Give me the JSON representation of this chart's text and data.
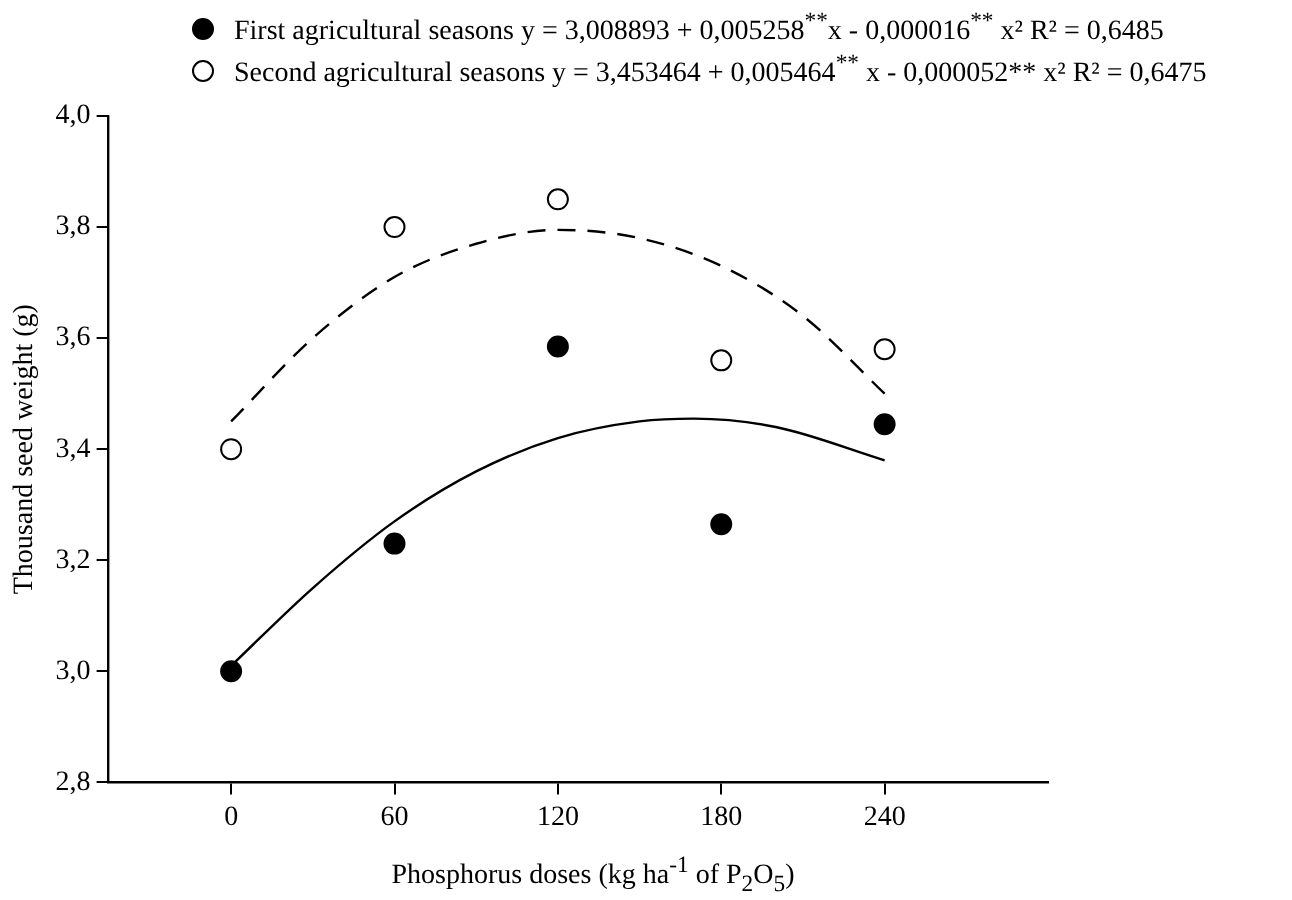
{
  "chart_data": {
    "type": "scatter",
    "xlabel": "Phosphorus doses (kg ha$^{-1}$ of  P$_{2}$O$_{5}$)",
    "ylabel": "Thousand seed weight (g)",
    "x": [
      0,
      60,
      120,
      180,
      240
    ],
    "series": [
      {
        "name": "First agricultural seasons y = 3,008893 + 0,005258$^{**}$x - 0,000016$^{**}$ x² R² = 0,6485",
        "type": "scatter",
        "marker": "circle",
        "color": "#000000",
        "values": [
          3.0,
          3.23,
          3.585,
          3.265,
          3.445
        ]
      },
      {
        "name": "Second agricultural seasons y = 3,453464 + 0,005464$^{**}$ x - 0,000052** x² R² = 0,6475",
        "type": "scatter",
        "marker": "circle",
        "color": "#ffffff",
        "values": [
          3.4,
          3.8,
          3.85,
          3.56,
          3.58
        ]
      },
      {
        "type": "line",
        "marker": "none",
        "line_style": "solid",
        "color": "#000000",
        "x": [
          0,
          30,
          60,
          90,
          120,
          150,
          170,
          200,
          240
        ],
        "values": [
          3.01,
          3.15,
          3.27,
          3.36,
          3.42,
          3.45,
          3.455,
          3.44,
          3.38
        ]
      },
      {
        "type": "line",
        "marker": "none",
        "line_style": "dashed",
        "color": "#000000",
        "x": [
          0,
          30,
          60,
          90,
          120,
          150,
          180,
          210,
          240
        ],
        "values": [
          3.45,
          3.6,
          3.71,
          3.77,
          3.795,
          3.78,
          3.73,
          3.64,
          3.5
        ]
      }
    ],
    "xlim": [
      -45,
      300
    ],
    "xticks": [
      0,
      60,
      120,
      180,
      240
    ],
    "ylim": [
      2.8,
      4.0
    ],
    "yticks": [
      {
        "value": 2.8,
        "label": "2,8"
      },
      {
        "value": 3.0,
        "label": "3,0"
      },
      {
        "value": 3.2,
        "label": "3,2"
      },
      {
        "value": 3.4,
        "label": "3,4"
      },
      {
        "value": 3.6,
        "label": "3,6"
      },
      {
        "value": 3.8,
        "label": "3,8"
      },
      {
        "value": 4.0,
        "label": "4,0"
      }
    ],
    "grid": false,
    "legend": "top"
  }
}
